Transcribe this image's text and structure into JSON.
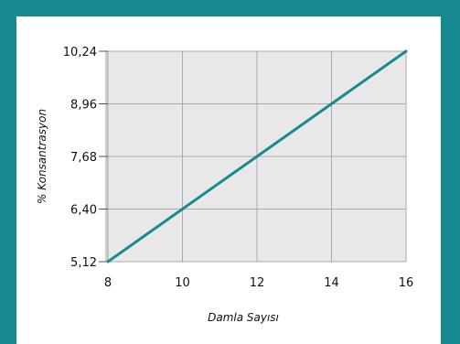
{
  "chart_data": {
    "type": "line",
    "title": "",
    "xlabel": "Damla Sayısı",
    "ylabel": "% Konsantrasyon",
    "x_ticks": [
      "8",
      "10",
      "12",
      "14",
      "16"
    ],
    "y_ticks": [
      "5,12",
      "6,40",
      "7,68",
      "8,96",
      "10,24"
    ],
    "xlim": [
      8,
      16
    ],
    "ylim": [
      5.12,
      10.24
    ],
    "grid": true,
    "series": [
      {
        "x": [
          8,
          16
        ],
        "y": [
          5.12,
          10.24
        ]
      }
    ],
    "colors": {
      "line": "#178a91",
      "plot_bg": "#e8e8e8",
      "grid": "#aaaaaa",
      "border": "#178a91",
      "card_bg": "#ffffff"
    }
  }
}
